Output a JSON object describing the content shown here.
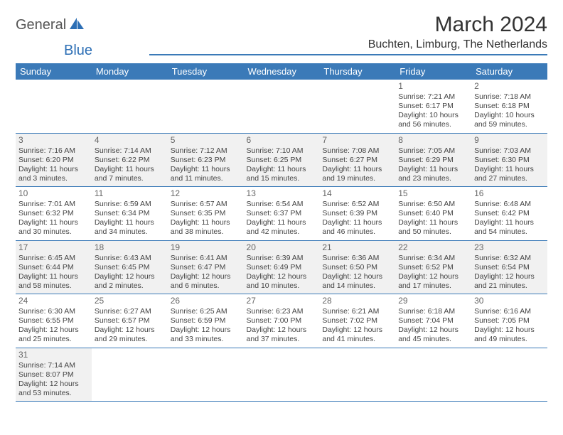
{
  "logo": {
    "part1": "General",
    "part2": "Blue"
  },
  "title": "March 2024",
  "location": "Buchten, Limburg, The Netherlands",
  "colors": {
    "header_bg": "#3b7ab8",
    "header_text": "#ffffff",
    "rule": "#3b7ab8",
    "shaded_cell": "#f1f1f1",
    "body_text": "#444444"
  },
  "day_headers": [
    "Sunday",
    "Monday",
    "Tuesday",
    "Wednesday",
    "Thursday",
    "Friday",
    "Saturday"
  ],
  "weeks": [
    [
      null,
      null,
      null,
      null,
      null,
      {
        "n": "1",
        "sunrise": "7:21 AM",
        "sunset": "6:17 PM",
        "daylight1": "Daylight: 10 hours",
        "daylight2": "and 56 minutes."
      },
      {
        "n": "2",
        "sunrise": "7:18 AM",
        "sunset": "6:18 PM",
        "daylight1": "Daylight: 10 hours",
        "daylight2": "and 59 minutes."
      }
    ],
    [
      {
        "n": "3",
        "shaded": true,
        "sunrise": "7:16 AM",
        "sunset": "6:20 PM",
        "daylight1": "Daylight: 11 hours",
        "daylight2": "and 3 minutes."
      },
      {
        "n": "4",
        "shaded": true,
        "sunrise": "7:14 AM",
        "sunset": "6:22 PM",
        "daylight1": "Daylight: 11 hours",
        "daylight2": "and 7 minutes."
      },
      {
        "n": "5",
        "shaded": true,
        "sunrise": "7:12 AM",
        "sunset": "6:23 PM",
        "daylight1": "Daylight: 11 hours",
        "daylight2": "and 11 minutes."
      },
      {
        "n": "6",
        "shaded": true,
        "sunrise": "7:10 AM",
        "sunset": "6:25 PM",
        "daylight1": "Daylight: 11 hours",
        "daylight2": "and 15 minutes."
      },
      {
        "n": "7",
        "shaded": true,
        "sunrise": "7:08 AM",
        "sunset": "6:27 PM",
        "daylight1": "Daylight: 11 hours",
        "daylight2": "and 19 minutes."
      },
      {
        "n": "8",
        "shaded": true,
        "sunrise": "7:05 AM",
        "sunset": "6:29 PM",
        "daylight1": "Daylight: 11 hours",
        "daylight2": "and 23 minutes."
      },
      {
        "n": "9",
        "shaded": true,
        "sunrise": "7:03 AM",
        "sunset": "6:30 PM",
        "daylight1": "Daylight: 11 hours",
        "daylight2": "and 27 minutes."
      }
    ],
    [
      {
        "n": "10",
        "sunrise": "7:01 AM",
        "sunset": "6:32 PM",
        "daylight1": "Daylight: 11 hours",
        "daylight2": "and 30 minutes."
      },
      {
        "n": "11",
        "sunrise": "6:59 AM",
        "sunset": "6:34 PM",
        "daylight1": "Daylight: 11 hours",
        "daylight2": "and 34 minutes."
      },
      {
        "n": "12",
        "sunrise": "6:57 AM",
        "sunset": "6:35 PM",
        "daylight1": "Daylight: 11 hours",
        "daylight2": "and 38 minutes."
      },
      {
        "n": "13",
        "sunrise": "6:54 AM",
        "sunset": "6:37 PM",
        "daylight1": "Daylight: 11 hours",
        "daylight2": "and 42 minutes."
      },
      {
        "n": "14",
        "sunrise": "6:52 AM",
        "sunset": "6:39 PM",
        "daylight1": "Daylight: 11 hours",
        "daylight2": "and 46 minutes."
      },
      {
        "n": "15",
        "sunrise": "6:50 AM",
        "sunset": "6:40 PM",
        "daylight1": "Daylight: 11 hours",
        "daylight2": "and 50 minutes."
      },
      {
        "n": "16",
        "sunrise": "6:48 AM",
        "sunset": "6:42 PM",
        "daylight1": "Daylight: 11 hours",
        "daylight2": "and 54 minutes."
      }
    ],
    [
      {
        "n": "17",
        "shaded": true,
        "sunrise": "6:45 AM",
        "sunset": "6:44 PM",
        "daylight1": "Daylight: 11 hours",
        "daylight2": "and 58 minutes."
      },
      {
        "n": "18",
        "shaded": true,
        "sunrise": "6:43 AM",
        "sunset": "6:45 PM",
        "daylight1": "Daylight: 12 hours",
        "daylight2": "and 2 minutes."
      },
      {
        "n": "19",
        "shaded": true,
        "sunrise": "6:41 AM",
        "sunset": "6:47 PM",
        "daylight1": "Daylight: 12 hours",
        "daylight2": "and 6 minutes."
      },
      {
        "n": "20",
        "shaded": true,
        "sunrise": "6:39 AM",
        "sunset": "6:49 PM",
        "daylight1": "Daylight: 12 hours",
        "daylight2": "and 10 minutes."
      },
      {
        "n": "21",
        "shaded": true,
        "sunrise": "6:36 AM",
        "sunset": "6:50 PM",
        "daylight1": "Daylight: 12 hours",
        "daylight2": "and 14 minutes."
      },
      {
        "n": "22",
        "shaded": true,
        "sunrise": "6:34 AM",
        "sunset": "6:52 PM",
        "daylight1": "Daylight: 12 hours",
        "daylight2": "and 17 minutes."
      },
      {
        "n": "23",
        "shaded": true,
        "sunrise": "6:32 AM",
        "sunset": "6:54 PM",
        "daylight1": "Daylight: 12 hours",
        "daylight2": "and 21 minutes."
      }
    ],
    [
      {
        "n": "24",
        "sunrise": "6:30 AM",
        "sunset": "6:55 PM",
        "daylight1": "Daylight: 12 hours",
        "daylight2": "and 25 minutes."
      },
      {
        "n": "25",
        "sunrise": "6:27 AM",
        "sunset": "6:57 PM",
        "daylight1": "Daylight: 12 hours",
        "daylight2": "and 29 minutes."
      },
      {
        "n": "26",
        "sunrise": "6:25 AM",
        "sunset": "6:59 PM",
        "daylight1": "Daylight: 12 hours",
        "daylight2": "and 33 minutes."
      },
      {
        "n": "27",
        "sunrise": "6:23 AM",
        "sunset": "7:00 PM",
        "daylight1": "Daylight: 12 hours",
        "daylight2": "and 37 minutes."
      },
      {
        "n": "28",
        "sunrise": "6:21 AM",
        "sunset": "7:02 PM",
        "daylight1": "Daylight: 12 hours",
        "daylight2": "and 41 minutes."
      },
      {
        "n": "29",
        "sunrise": "6:18 AM",
        "sunset": "7:04 PM",
        "daylight1": "Daylight: 12 hours",
        "daylight2": "and 45 minutes."
      },
      {
        "n": "30",
        "sunrise": "6:16 AM",
        "sunset": "7:05 PM",
        "daylight1": "Daylight: 12 hours",
        "daylight2": "and 49 minutes."
      }
    ],
    [
      {
        "n": "31",
        "shaded": true,
        "sunrise": "7:14 AM",
        "sunset": "8:07 PM",
        "daylight1": "Daylight: 12 hours",
        "daylight2": "and 53 minutes."
      },
      null,
      null,
      null,
      null,
      null,
      null
    ]
  ],
  "labels": {
    "sunrise_prefix": "Sunrise: ",
    "sunset_prefix": "Sunset: "
  }
}
